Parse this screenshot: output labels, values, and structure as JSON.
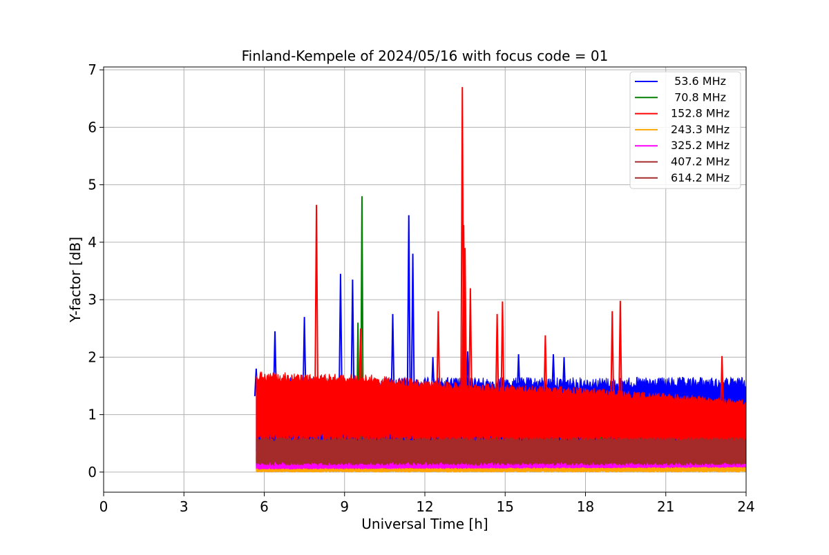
{
  "chart_data": {
    "type": "line",
    "title": "Finland-Kempele of 2024/05/16 with focus code = 01",
    "xlabel": "Universal Time [h]",
    "ylabel": "Y-factor [dB]",
    "xlim": [
      0,
      24
    ],
    "ylim": [
      -0.35,
      7.05
    ],
    "xticks": [
      0,
      3,
      6,
      9,
      12,
      15,
      18,
      21,
      24
    ],
    "xtick_labels": [
      "0",
      "3",
      "6",
      "9",
      "12",
      "15",
      "18",
      "21",
      "24"
    ],
    "yticks": [
      0,
      1,
      2,
      3,
      4,
      5,
      6,
      7
    ],
    "ytick_labels": [
      "0",
      "1",
      "2",
      "3",
      "4",
      "5",
      "6",
      "7"
    ],
    "grid": true,
    "legend_position": "top-right",
    "series": [
      {
        "name": " 53.6 MHz",
        "color": "#0000ff",
        "band": {
          "x": [
            5.7,
            24
          ],
          "low": [
            0.3,
            0.3
          ],
          "high": [
            1.65,
            1.65
          ]
        },
        "x": [
          5.7,
          6.4,
          7.5,
          8.85,
          9.3,
          10.8,
          11.4,
          11.55,
          12.3,
          13.6,
          15.5,
          16.8,
          17.2,
          17.5,
          22.3
        ],
        "y": [
          1.8,
          2.45,
          2.7,
          3.45,
          3.35,
          2.75,
          4.47,
          3.8,
          2.0,
          2.1,
          2.05,
          2.05,
          2.0,
          0.85,
          1.65
        ]
      },
      {
        "name": " 70.8 MHz",
        "color": "#008000",
        "band": {
          "x": [
            5.7,
            24
          ],
          "low": [
            0.1,
            0.1
          ],
          "high": [
            0.35,
            0.35
          ]
        },
        "x": [
          9.5,
          9.65,
          13.5,
          14.7,
          18.6
        ],
        "y": [
          2.6,
          4.8,
          1.1,
          0.65,
          0.65
        ]
      },
      {
        "name": "152.8 MHz",
        "color": "#ff0000",
        "band": {
          "x": [
            5.7,
            10,
            13.5,
            17,
            20,
            22,
            24
          ],
          "low": [
            0.5,
            0.5,
            0.5,
            0.5,
            0.5,
            0.45,
            0.45
          ],
          "high": [
            1.75,
            1.7,
            1.55,
            1.5,
            1.4,
            1.35,
            1.25
          ]
        },
        "x": [
          7.95,
          9.6,
          12.5,
          13.4,
          13.45,
          13.5,
          13.7,
          14.7,
          14.9,
          16.5,
          19.0,
          19.3,
          23.1
        ],
        "y": [
          4.65,
          2.5,
          2.8,
          6.7,
          4.3,
          3.9,
          3.2,
          2.75,
          2.97,
          2.38,
          2.8,
          2.98,
          2.02
        ]
      },
      {
        "name": "243.3 MHz",
        "color": "#ffa500",
        "band": {
          "x": [
            5.7,
            24
          ],
          "low": [
            0.0,
            0.0
          ],
          "high": [
            0.12,
            0.15
          ]
        },
        "x": [],
        "y": []
      },
      {
        "name": "325.2 MHz",
        "color": "#ff00ff",
        "band": {
          "x": [
            5.7,
            24
          ],
          "low": [
            0.05,
            0.08
          ],
          "high": [
            0.2,
            0.22
          ]
        },
        "x": [],
        "y": []
      },
      {
        "name": "407.2 MHz",
        "color": "#a52a2a",
        "band": {
          "x": [
            5.7,
            24
          ],
          "low": [
            0.12,
            0.12
          ],
          "high": [
            0.55,
            0.55
          ]
        },
        "x": [],
        "y": []
      },
      {
        "name": "614.2 MHz",
        "color": "#a52a2a",
        "band": {
          "x": [
            5.7,
            24
          ],
          "low": [
            0.15,
            0.15
          ],
          "high": [
            0.6,
            0.6
          ]
        },
        "x": [],
        "y": []
      }
    ]
  }
}
